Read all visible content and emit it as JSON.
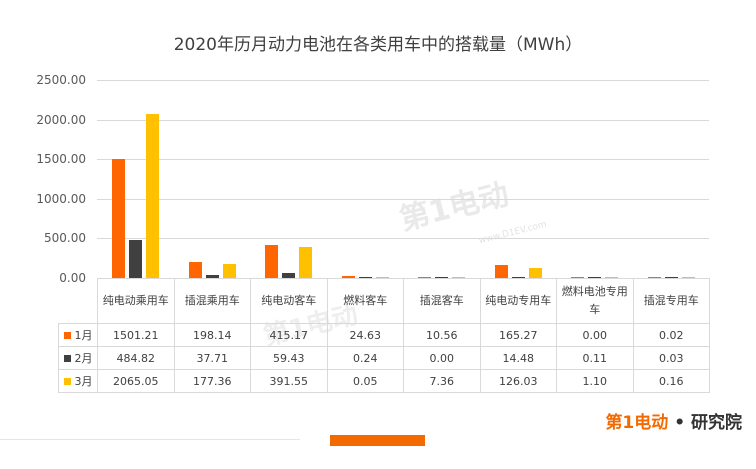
{
  "title": "2020年历月动力电池在各类用车中的搭载量（MWh）",
  "brand": {
    "logo_text": "第1电动",
    "dot": "•",
    "label": "研究院"
  },
  "watermark": {
    "text": "第1电动",
    "sub": "www.D1EV.com"
  },
  "colors": {
    "jan": "#ff6600",
    "feb": "#404040",
    "mar": "#ffc000",
    "accent": "#f46a00",
    "grid": "#d9d9d9"
  },
  "chart_data": {
    "type": "bar",
    "title": "2020年历月动力电池在各类用车中的搭载量（MWh）",
    "categories": [
      "纯电动乘用车",
      "插混乘用车",
      "纯电动客车",
      "燃料客车",
      "插混客车",
      "纯电动专用车",
      "燃料电池专用车",
      "插混专用车"
    ],
    "series": [
      {
        "name": "1月",
        "values": [
          1501.21,
          198.14,
          415.17,
          24.63,
          10.56,
          165.27,
          0.0,
          0.02
        ]
      },
      {
        "name": "2月",
        "values": [
          484.82,
          37.71,
          59.43,
          0.24,
          0.0,
          14.48,
          0.11,
          0.03
        ]
      },
      {
        "name": "3月",
        "values": [
          2065.05,
          177.36,
          391.55,
          0.05,
          7.36,
          126.03,
          1.1,
          0.16
        ]
      }
    ],
    "y_ticks": [
      "2500.00",
      "2000.00",
      "1500.00",
      "1000.00",
      "500.00",
      "0.00"
    ],
    "ylim": [
      0,
      2500
    ],
    "value_format": "2 decimals",
    "legend": "data-table",
    "grid": true
  }
}
